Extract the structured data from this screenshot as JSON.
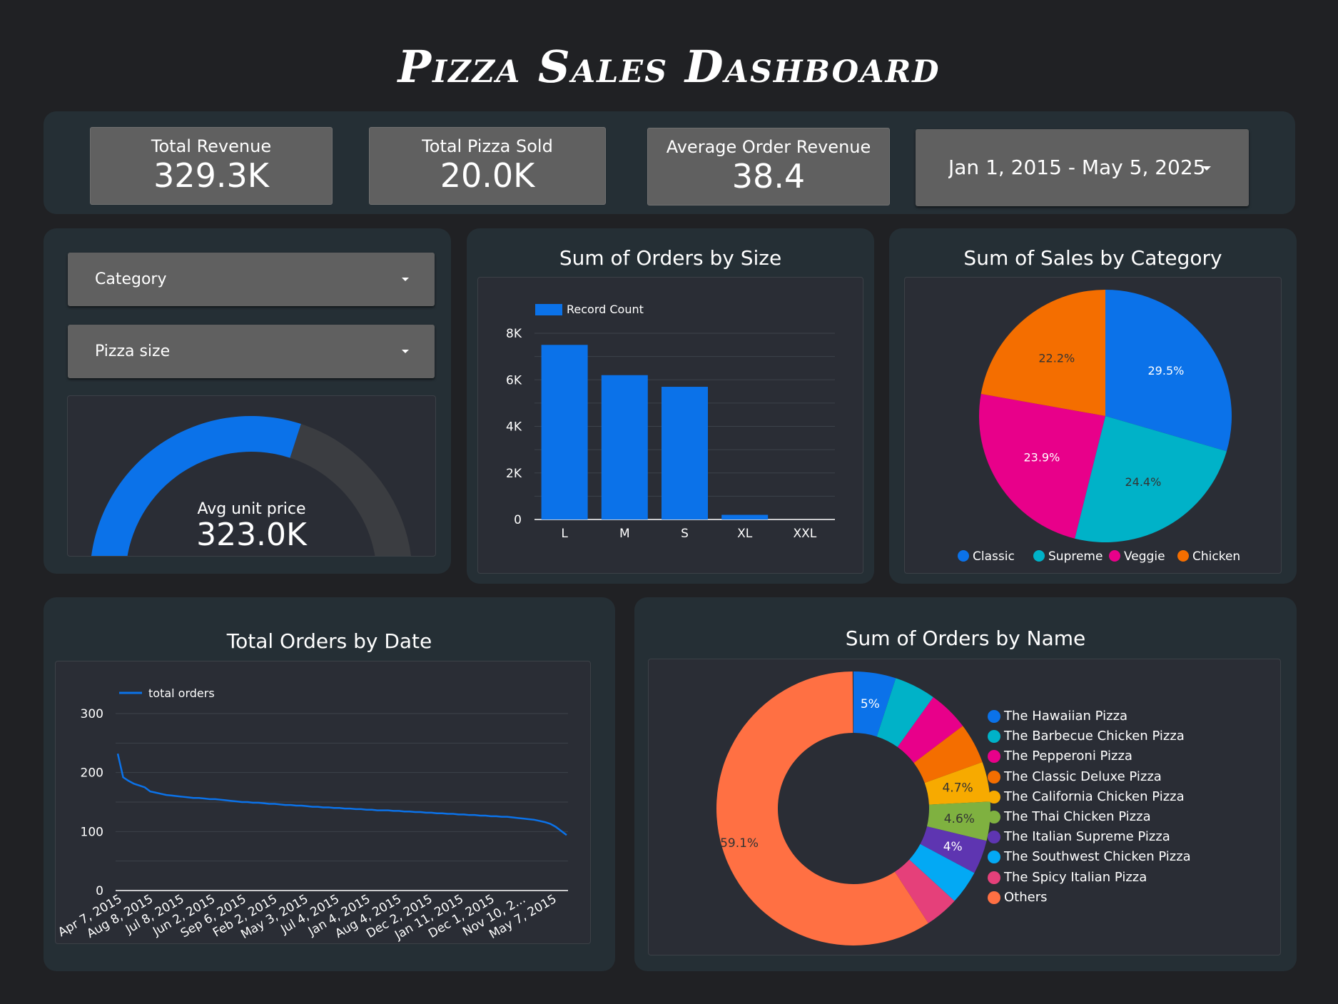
{
  "title": "Pizza Sales Dashboard",
  "kpis": [
    {
      "label": "Total Revenue",
      "value": "329.3K"
    },
    {
      "label": "Total Pizza Sold",
      "value": "20.0K"
    },
    {
      "label": "Average Order Revenue",
      "value": "38.4"
    }
  ],
  "date_range": {
    "value": "Jan 1, 2015 - May 5, 2025"
  },
  "filters": [
    {
      "label": "Category"
    },
    {
      "label": "Pizza size"
    }
  ],
  "gauge": {
    "label": "Avg unit price",
    "value": "323.0K",
    "fill_fraction": 0.6
  },
  "colors": {
    "blue": "#0b72e9",
    "teal": "#00b2c8",
    "pink": "#e8008a",
    "orange": "#f46e00",
    "gauge_track": "#3b3d41",
    "background": "#202124",
    "panel": "#252f35"
  },
  "chart_data": [
    {
      "type": "bar",
      "title": "Sum of Orders by Size",
      "categories": [
        "L",
        "M",
        "S",
        "XL",
        "XXL"
      ],
      "series": [
        {
          "name": "Record Count",
          "values": [
            7500,
            6200,
            5700,
            200,
            0
          ]
        }
      ],
      "y_ticks": [
        "0",
        "2K",
        "4K",
        "6K",
        "8K"
      ],
      "ylim": [
        0,
        8000
      ],
      "legend": "top-left",
      "grid": true
    },
    {
      "type": "pie",
      "title": "Sum of Sales by Category",
      "slices": [
        {
          "label": "Classic",
          "percent": 29.5,
          "display": "29.5%",
          "color": "#0b72e9"
        },
        {
          "label": "Supreme",
          "percent": 24.4,
          "display": "24.4%",
          "color": "#00b2c8"
        },
        {
          "label": "Veggie",
          "percent": 23.9,
          "display": "23.9%",
          "color": "#e8008a"
        },
        {
          "label": "Chicken",
          "percent": 22.2,
          "display": "22.2%",
          "color": "#f46e00"
        }
      ],
      "legend": "bottom"
    },
    {
      "type": "line",
      "title": "Total Orders by Date",
      "series": [
        {
          "name": "total orders",
          "values": [
            232,
            192,
            186,
            181,
            178,
            175,
            168,
            166,
            164,
            162,
            161,
            160,
            159,
            158,
            157,
            157,
            156,
            155,
            155,
            154,
            153,
            152,
            151,
            150,
            150,
            149,
            149,
            148,
            147,
            147,
            146,
            145,
            145,
            144,
            144,
            143,
            142,
            142,
            141,
            141,
            140,
            140,
            139,
            139,
            138,
            138,
            137,
            137,
            136,
            136,
            136,
            135,
            135,
            134,
            134,
            133,
            133,
            132,
            132,
            131,
            131,
            130,
            130,
            129,
            129,
            128,
            128,
            127,
            127,
            126,
            126,
            125,
            125,
            124,
            123,
            122,
            121,
            120,
            118,
            116,
            113,
            108,
            101,
            94
          ]
        }
      ],
      "x_tick_labels": [
        "Apr 7, 2015",
        "Aug 8, 2015",
        "Jul 8, 2015",
        "Jun 2, 2015",
        "Sep 6, 2015",
        "Feb 2, 2015",
        "May 3, 2015",
        "Jul 4, 2015",
        "Jan 4, 2015",
        "Aug 4, 2015",
        "Dec 2, 2015",
        "Jan 11, 2015",
        "Dec 1, 2015",
        "Nov 10, 2...",
        "May 7, 2015"
      ],
      "y_ticks": [
        "0",
        "100",
        "200",
        "300"
      ],
      "ylim": [
        0,
        300
      ],
      "legend": "top-left",
      "grid": true
    },
    {
      "type": "pie",
      "title": "Sum of Orders by Name",
      "donut": true,
      "slices": [
        {
          "label": "The Hawaiian Pizza",
          "percent": 5.0,
          "display": "5%",
          "color": "#0b72e9"
        },
        {
          "label": "The Barbecue Chicken Pizza",
          "percent": 4.9,
          "display": "",
          "color": "#00b2c8"
        },
        {
          "label": "The Pepperoni Pizza",
          "percent": 4.8,
          "display": "",
          "color": "#e8008a"
        },
        {
          "label": "The Classic Deluxe Pizza",
          "percent": 4.8,
          "display": "",
          "color": "#f46e00"
        },
        {
          "label": "The California Chicken Pizza",
          "percent": 4.7,
          "display": "4.7%",
          "color": "#f7aa00"
        },
        {
          "label": "The Thai Chicken Pizza",
          "percent": 4.6,
          "display": "4.6%",
          "color": "#7fb140"
        },
        {
          "label": "The Italian Supreme Pizza",
          "percent": 4.0,
          "display": "4%",
          "color": "#5e35b1"
        },
        {
          "label": "The Southwest Chicken Pizza",
          "percent": 4.0,
          "display": "",
          "color": "#03a9f4"
        },
        {
          "label": "The Spicy Italian Pizza",
          "percent": 4.0,
          "display": "",
          "color": "#e5407a"
        },
        {
          "label": "Others",
          "percent": 59.1,
          "display": "59.1%",
          "color": "#ff7043"
        }
      ],
      "legend": "right"
    }
  ]
}
